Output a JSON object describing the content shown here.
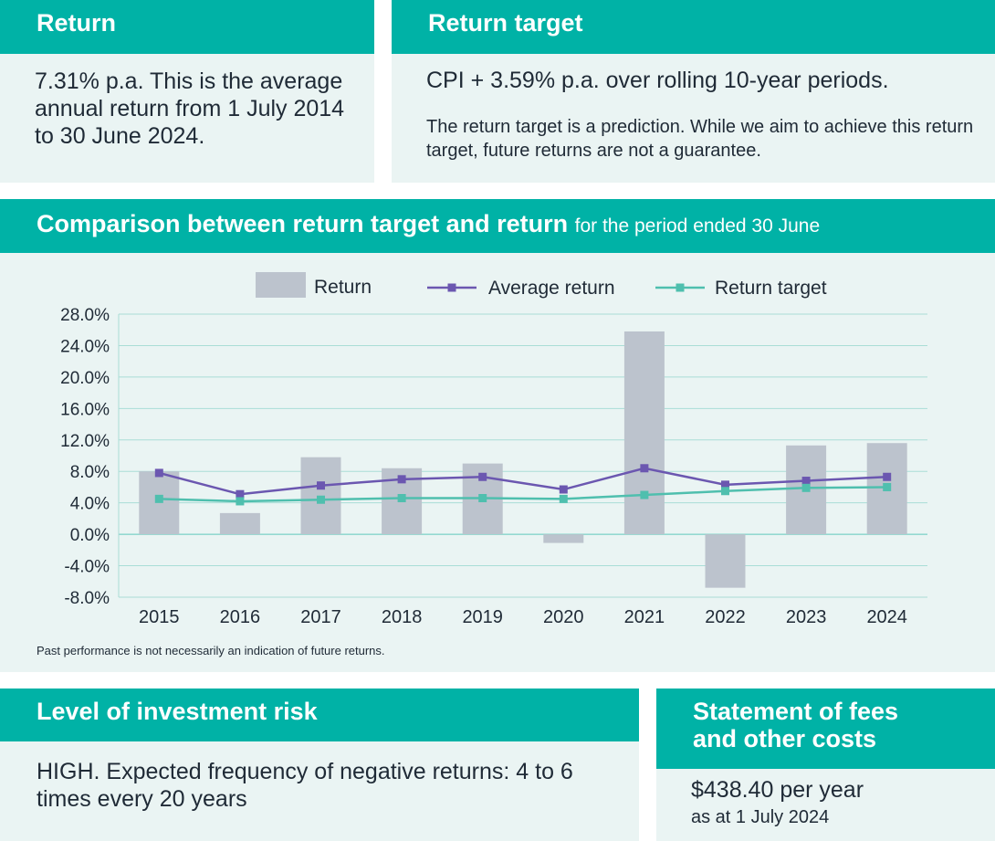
{
  "return_panel": {
    "title": "Return",
    "text": "7.31% p.a. This is the average annual return from 1 July 2014 to 30 June 2024."
  },
  "target_panel": {
    "title": "Return target",
    "line1": "CPI + 3.59% p.a. over rolling 10-year periods.",
    "line2": "The return target is a prediction. While we aim to achieve this return target, future returns are not a guarantee."
  },
  "chart_panel": {
    "title": "Comparison between return target and return",
    "subtitle": "for the period ended 30 June",
    "disclaimer": "Past performance is not necessarily an indication of future returns."
  },
  "chart_data": {
    "type": "bar",
    "categories": [
      "2015",
      "2016",
      "2017",
      "2018",
      "2019",
      "2020",
      "2021",
      "2022",
      "2023",
      "2024"
    ],
    "ylim": [
      -8,
      28
    ],
    "yticks": [
      "28.0%",
      "24.0%",
      "20.0%",
      "16.0%",
      "12.0%",
      "8.0%",
      "4.0%",
      "0.0%",
      "-4.0%",
      "-8.0%"
    ],
    "ytick_values": [
      28,
      24,
      20,
      16,
      12,
      8,
      4,
      0,
      -4,
      -8
    ],
    "series": [
      {
        "name": "Return",
        "kind": "bar",
        "color": "#bcc3cd",
        "values": [
          8.0,
          2.7,
          9.8,
          8.4,
          9.0,
          -1.1,
          25.8,
          -6.8,
          11.3,
          11.6
        ]
      },
      {
        "name": "Average return",
        "kind": "line",
        "color": "#6b57b0",
        "values": [
          7.8,
          5.1,
          6.2,
          7.0,
          7.3,
          5.7,
          8.4,
          6.3,
          6.8,
          7.3
        ]
      },
      {
        "name": "Return target",
        "kind": "line",
        "color": "#4fbfae",
        "values": [
          4.5,
          4.2,
          4.4,
          4.6,
          4.6,
          4.5,
          5.0,
          5.5,
          5.9,
          6.0
        ]
      }
    ],
    "legend": [
      "Return",
      "Average return",
      "Return target"
    ],
    "grid": true
  },
  "risk_panel": {
    "title": "Level of investment risk",
    "text": "HIGH. Expected frequency of negative returns: 4 to 6 times every 20 years"
  },
  "fees_panel": {
    "title_line1": "Statement of fees",
    "title_line2": "and other costs",
    "amount": "$438.40 per year",
    "date": "as at 1 July 2024"
  }
}
